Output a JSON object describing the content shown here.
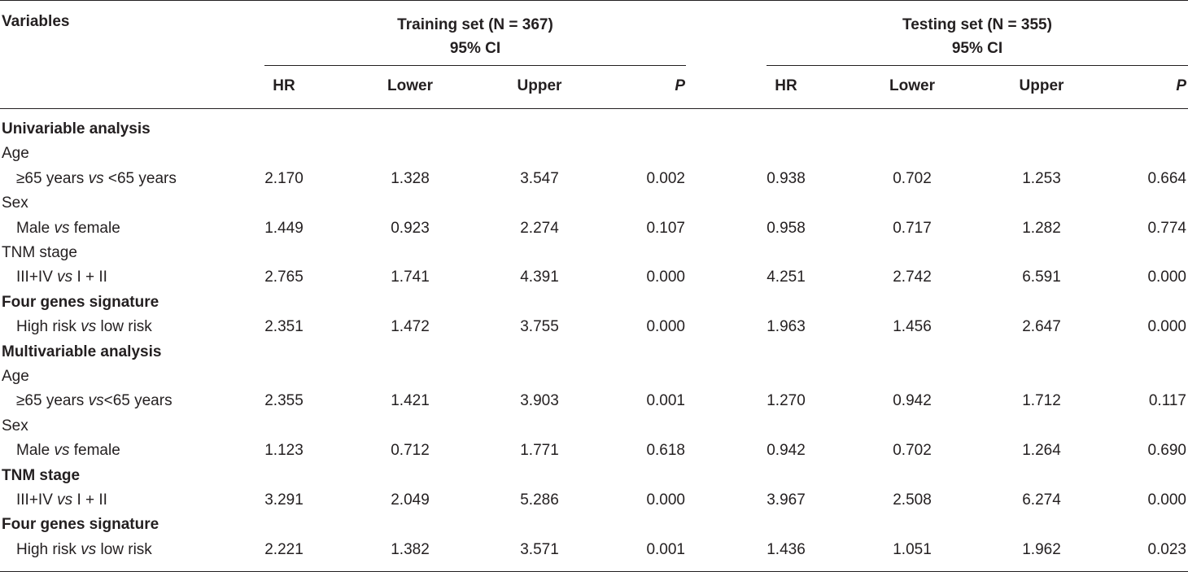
{
  "header": {
    "variables": "Variables",
    "training": {
      "title": "Training set (N = 367)",
      "ci": "95% CI"
    },
    "testing": {
      "title": "Testing set (N = 355)",
      "ci": "95% CI"
    },
    "columns": [
      "HR",
      "Lower",
      "Upper",
      "P",
      "HR",
      "Lower",
      "Upper",
      "P"
    ]
  },
  "rows": [
    {
      "type": "section",
      "label": "Univariable analysis"
    },
    {
      "type": "group",
      "label": "Age"
    },
    {
      "type": "data",
      "pre": "≥65 years ",
      "vs": "vs",
      "post": " <65 years",
      "values": [
        "2.170",
        "1.328",
        "3.547",
        "0.002",
        "0.938",
        "0.702",
        "1.253",
        "0.664"
      ]
    },
    {
      "type": "group",
      "label": "Sex"
    },
    {
      "type": "data",
      "pre": "Male ",
      "vs": "vs",
      "post": " female",
      "values": [
        "1.449",
        "0.923",
        "2.274",
        "0.107",
        "0.958",
        "0.717",
        "1.282",
        "0.774"
      ]
    },
    {
      "type": "group",
      "label": "TNM stage"
    },
    {
      "type": "data",
      "pre": "III+IV ",
      "vs": "vs",
      "post": " I + II",
      "values": [
        "2.765",
        "1.741",
        "4.391",
        "0.000",
        "4.251",
        "2.742",
        "6.591",
        "0.000"
      ]
    },
    {
      "type": "section",
      "label": "Four genes signature"
    },
    {
      "type": "data",
      "pre": "High risk ",
      "vs": "vs",
      "post": " low risk",
      "values": [
        "2.351",
        "1.472",
        "3.755",
        "0.000",
        "1.963",
        "1.456",
        "2.647",
        "0.000"
      ]
    },
    {
      "type": "section",
      "label": "Multivariable analysis"
    },
    {
      "type": "group",
      "label": "Age"
    },
    {
      "type": "data",
      "pre": "≥65 years ",
      "vs": "vs",
      "post": "<65 years",
      "values": [
        "2.355",
        "1.421",
        "3.903",
        "0.001",
        "1.270",
        "0.942",
        "1.712",
        "0.117"
      ]
    },
    {
      "type": "group",
      "label": "Sex"
    },
    {
      "type": "data",
      "pre": "Male ",
      "vs": "vs",
      "post": " female",
      "values": [
        "1.123",
        "0.712",
        "1.771",
        "0.618",
        "0.942",
        "0.702",
        "1.264",
        "0.690"
      ]
    },
    {
      "type": "section",
      "label": "TNM stage"
    },
    {
      "type": "data",
      "pre": "III+IV ",
      "vs": "vs",
      "post": " I + II",
      "values": [
        "3.291",
        "2.049",
        "5.286",
        "0.000",
        "3.967",
        "2.508",
        "6.274",
        "0.000"
      ]
    },
    {
      "type": "section",
      "label": "Four genes signature"
    },
    {
      "type": "data",
      "pre": "High risk ",
      "vs": "vs",
      "post": " low risk",
      "values": [
        "2.221",
        "1.382",
        "3.571",
        "0.001",
        "1.436",
        "1.051",
        "1.962",
        "0.023"
      ]
    }
  ]
}
